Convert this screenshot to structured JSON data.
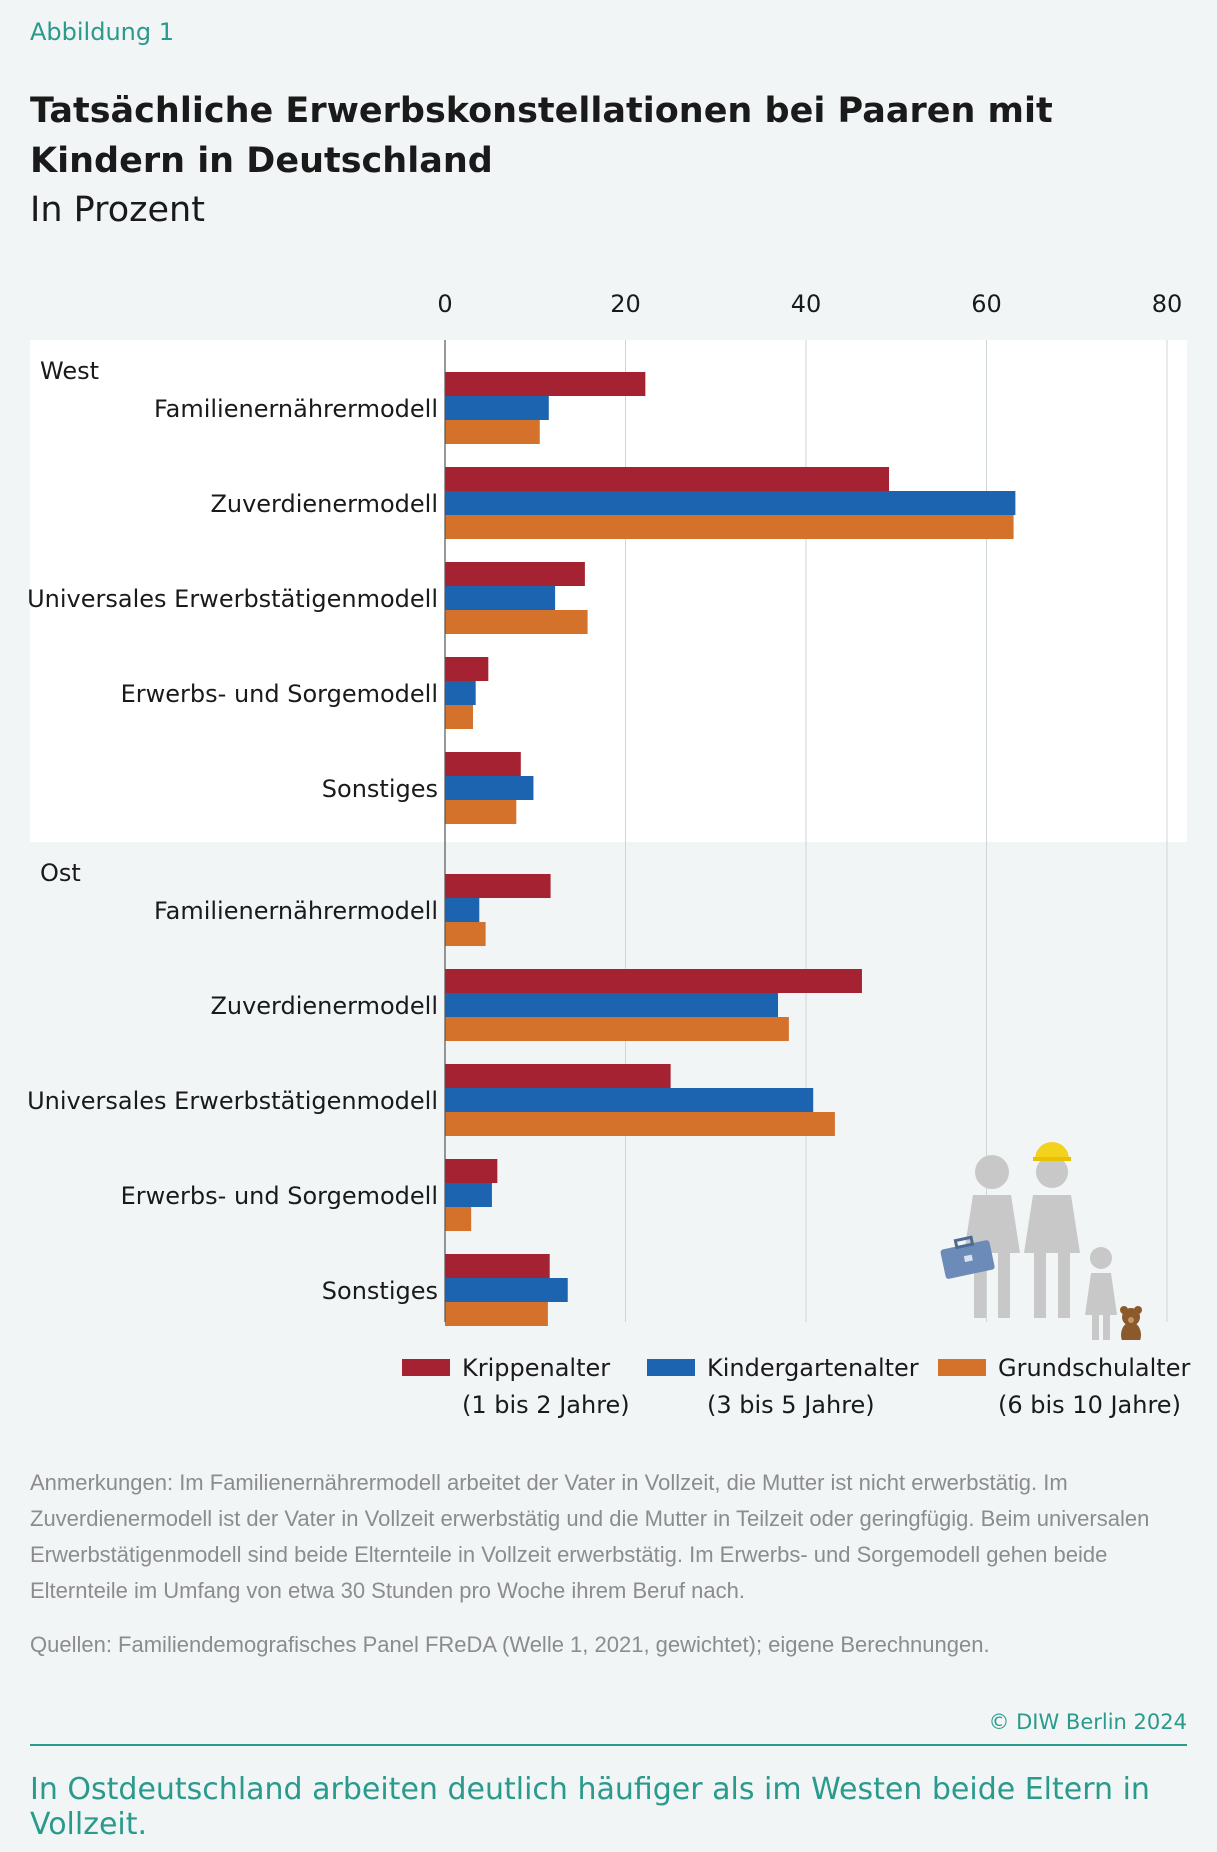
{
  "figure_label": "Abbildung 1",
  "title": "Tatsächliche Erwerbskonstellationen bei Paaren mit Kindern in Deutschland",
  "subtitle": "In Prozent",
  "colors": {
    "krippe": "#a52232",
    "kita": "#1c64b0",
    "schule": "#d4712a",
    "teal": "#2a9a8c"
  },
  "chart_data": {
    "type": "bar",
    "orientation": "horizontal",
    "xlim": [
      0,
      80
    ],
    "xticks": [
      0,
      20,
      40,
      60,
      80
    ],
    "grid": true,
    "legend_position": "bottom",
    "groups": [
      {
        "name": "West",
        "categories": [
          "Familienernährermodell",
          "Zuverdienermodell",
          "Universales Erwerbstätigenmodell",
          "Erwerbs- und Sorgemodell",
          "Sonstiges"
        ],
        "series": [
          {
            "name": "Krippenalter (1 bis 2 Jahre)",
            "values": [
              22.2,
              49.2,
              15.5,
              4.8,
              8.4
            ]
          },
          {
            "name": "Kindergartenalter (3 bis 5 Jahre)",
            "values": [
              11.5,
              63.2,
              12.2,
              3.4,
              9.8
            ]
          },
          {
            "name": "Grundschulalter (6 bis 10 Jahre)",
            "values": [
              10.5,
              63.0,
              15.8,
              3.1,
              7.9
            ]
          }
        ]
      },
      {
        "name": "Ost",
        "categories": [
          "Familienernährermodell",
          "Zuverdienermodell",
          "Universales Erwerbstätigenmodell",
          "Erwerbs- und Sorgemodell",
          "Sonstiges"
        ],
        "series": [
          {
            "name": "Krippenalter (1 bis 2 Jahre)",
            "values": [
              11.7,
              46.2,
              25.0,
              5.8,
              11.6
            ]
          },
          {
            "name": "Kindergartenalter (3 bis 5 Jahre)",
            "values": [
              3.8,
              36.9,
              40.8,
              5.2,
              13.6
            ]
          },
          {
            "name": "Grundschulalter (6 bis 10 Jahre)",
            "values": [
              4.5,
              38.1,
              43.2,
              2.9,
              11.4
            ]
          }
        ]
      }
    ]
  },
  "legend": [
    {
      "line1": "Krippenalter",
      "line2": "(1 bis 2 Jahre)"
    },
    {
      "line1": "Kindergartenalter",
      "line2": "(3 bis 5 Jahre)"
    },
    {
      "line1": "Grundschulalter",
      "line2": "(6 bis 10 Jahre)"
    }
  ],
  "notes": "Anmerkungen: Im Familienernährermodell arbeitet der Vater in Vollzeit, die Mutter ist nicht erwerbstätig. Im Zuverdienermodell ist der Vater in Vollzeit erwerbstätig und die Mutter in Teilzeit oder geringfügig. Beim universalen Erwerbstätigenmodell sind beide Elternteile in Vollzeit erwerbstätig. Im Erwerbs- und Sorgemodell gehen beide Elternteile im Umfang von etwa 30 Stunden pro Woche ihrem Beruf nach.",
  "sources": "Quellen: Familiendemografisches Panel FReDA (Welle 1, 2021, gewichtet); eigene Berechnungen.",
  "copyright": "© DIW Berlin 2024",
  "takeaway": "In Ostdeutschland arbeiten deutlich häufiger als im Westen beide Eltern in Vollzeit.",
  "illustration": {
    "icon": "family-illustration-icon"
  }
}
